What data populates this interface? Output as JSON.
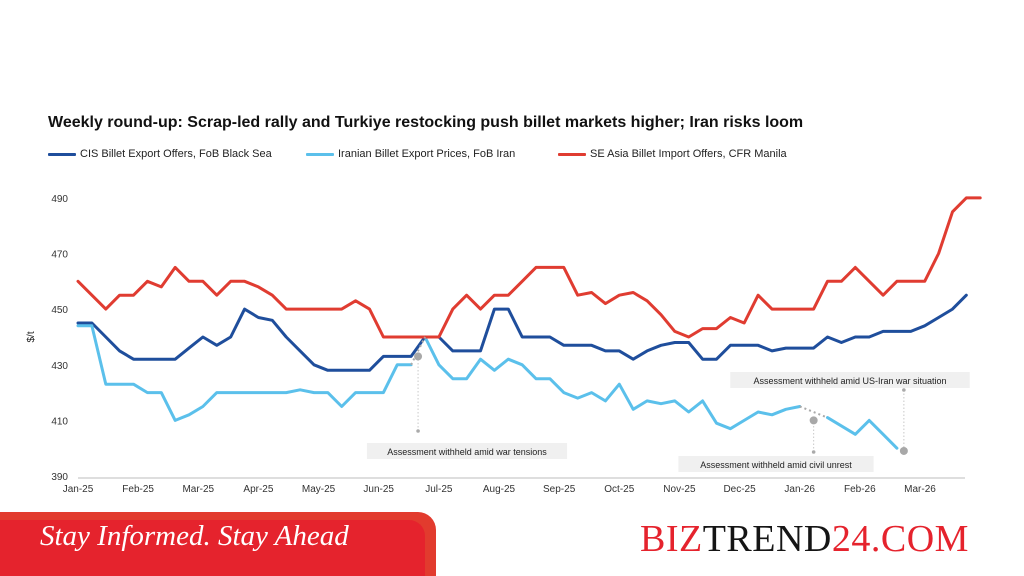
{
  "chart_data": {
    "type": "line",
    "title": "Weekly round-up: Scrap-led rally and Turkiye restocking push billet markets higher; Iran risks loom",
    "ylabel": "$/t",
    "ylim": [
      390,
      495
    ],
    "yticks": [
      390,
      410,
      430,
      450,
      470,
      490
    ],
    "xticks": [
      "Jan-25",
      "Feb-25",
      "Mar-25",
      "Apr-25",
      "May-25",
      "Jun-25",
      "Jul-25",
      "Aug-25",
      "Sep-25",
      "Oct-25",
      "Nov-25",
      "Dec-25",
      "Jan-26",
      "Feb-26",
      "Mar-26"
    ],
    "x_unit": "week index from first week of Jan-25 (month ticks every ~4.33 weeks)",
    "grid": false,
    "legend_position": "top",
    "series": [
      {
        "name": "CIS Billet Export Offers, FoB Black Sea",
        "color": "#1f4e9c",
        "points": [
          [
            0,
            445
          ],
          [
            1,
            445
          ],
          [
            2,
            440
          ],
          [
            3,
            435
          ],
          [
            4,
            432
          ],
          [
            5,
            432
          ],
          [
            6,
            432
          ],
          [
            7,
            432
          ],
          [
            8,
            436
          ],
          [
            9,
            440
          ],
          [
            10,
            437
          ],
          [
            11,
            440
          ],
          [
            12,
            450
          ],
          [
            13,
            447
          ],
          [
            14,
            446
          ],
          [
            15,
            440
          ],
          [
            16,
            435
          ],
          [
            17,
            430
          ],
          [
            18,
            428
          ],
          [
            19,
            428
          ],
          [
            20,
            428
          ],
          [
            21,
            428
          ],
          [
            22,
            433
          ],
          [
            23,
            433
          ],
          [
            24,
            433
          ],
          [
            25,
            440
          ],
          [
            26,
            440
          ],
          [
            27,
            435
          ],
          [
            28,
            435
          ],
          [
            29,
            435
          ],
          [
            30,
            450
          ],
          [
            31,
            450
          ],
          [
            32,
            440
          ],
          [
            33,
            440
          ],
          [
            34,
            440
          ],
          [
            35,
            437
          ],
          [
            36,
            437
          ],
          [
            37,
            437
          ],
          [
            38,
            435
          ],
          [
            39,
            435
          ],
          [
            40,
            432
          ],
          [
            41,
            435
          ],
          [
            42,
            437
          ],
          [
            43,
            438
          ],
          [
            44,
            438
          ],
          [
            45,
            432
          ],
          [
            46,
            432
          ],
          [
            47,
            437
          ],
          [
            48,
            437
          ],
          [
            49,
            437
          ],
          [
            50,
            435
          ],
          [
            51,
            436
          ],
          [
            52,
            436
          ],
          [
            53,
            436
          ],
          [
            54,
            440
          ],
          [
            55,
            438
          ],
          [
            56,
            440
          ],
          [
            57,
            440
          ],
          [
            58,
            442
          ],
          [
            59,
            442
          ],
          [
            60,
            442
          ],
          [
            61,
            444
          ],
          [
            62,
            447
          ],
          [
            63,
            450
          ],
          [
            64,
            455
          ]
        ]
      },
      {
        "name": "Iranian Billet Export Prices, FoB Iran",
        "color": "#5bc0eb",
        "points": [
          [
            0,
            444
          ],
          [
            1,
            444
          ],
          [
            2,
            423
          ],
          [
            3,
            423
          ],
          [
            4,
            423
          ],
          [
            5,
            420
          ],
          [
            6,
            420
          ],
          [
            7,
            410
          ],
          [
            8,
            412
          ],
          [
            9,
            415
          ],
          [
            10,
            420
          ],
          [
            11,
            420
          ],
          [
            12,
            420
          ],
          [
            13,
            420
          ],
          [
            14,
            420
          ],
          [
            15,
            420
          ],
          [
            16,
            421
          ],
          [
            17,
            420
          ],
          [
            18,
            420
          ],
          [
            19,
            415
          ],
          [
            20,
            420
          ],
          [
            21,
            420
          ],
          [
            22,
            420
          ],
          [
            23,
            430
          ],
          [
            24,
            430
          ],
          [
            null,
            null
          ],
          [
            25,
            440
          ],
          [
            26,
            430
          ],
          [
            27,
            425
          ],
          [
            28,
            425
          ],
          [
            29,
            432
          ],
          [
            30,
            428
          ],
          [
            31,
            432
          ],
          [
            32,
            430
          ],
          [
            33,
            425
          ],
          [
            34,
            425
          ],
          [
            35,
            420
          ],
          [
            36,
            418
          ],
          [
            37,
            420
          ],
          [
            38,
            417
          ],
          [
            39,
            423
          ],
          [
            40,
            414
          ],
          [
            41,
            417
          ],
          [
            42,
            416
          ],
          [
            43,
            417
          ],
          [
            44,
            413
          ],
          [
            45,
            417
          ],
          [
            46,
            409
          ],
          [
            47,
            407
          ],
          [
            48,
            410
          ],
          [
            49,
            413
          ],
          [
            50,
            412
          ],
          [
            51,
            414
          ],
          [
            52,
            415
          ],
          [
            null,
            null
          ],
          [
            54,
            411
          ],
          [
            55,
            408
          ],
          [
            56,
            405
          ],
          [
            57,
            410
          ],
          [
            58,
            405
          ],
          [
            59,
            400
          ]
        ]
      },
      {
        "name": "SE Asia Billet Import Offers, CFR Manila",
        "color": "#e03c31",
        "points": [
          [
            0,
            460
          ],
          [
            1,
            455
          ],
          [
            2,
            450
          ],
          [
            3,
            455
          ],
          [
            4,
            455
          ],
          [
            5,
            460
          ],
          [
            6,
            458
          ],
          [
            7,
            465
          ],
          [
            8,
            460
          ],
          [
            9,
            460
          ],
          [
            10,
            455
          ],
          [
            11,
            460
          ],
          [
            12,
            460
          ],
          [
            13,
            458
          ],
          [
            14,
            455
          ],
          [
            15,
            450
          ],
          [
            16,
            450
          ],
          [
            17,
            450
          ],
          [
            18,
            450
          ],
          [
            19,
            450
          ],
          [
            20,
            453
          ],
          [
            21,
            450
          ],
          [
            22,
            440
          ],
          [
            23,
            440
          ],
          [
            24,
            440
          ],
          [
            25,
            440
          ],
          [
            26,
            440
          ],
          [
            27,
            450
          ],
          [
            28,
            455
          ],
          [
            29,
            450
          ],
          [
            30,
            455
          ],
          [
            31,
            455
          ],
          [
            32,
            460
          ],
          [
            33,
            465
          ],
          [
            34,
            465
          ],
          [
            35,
            465
          ],
          [
            36,
            455
          ],
          [
            37,
            456
          ],
          [
            38,
            452
          ],
          [
            39,
            455
          ],
          [
            40,
            456
          ],
          [
            41,
            453
          ],
          [
            42,
            448
          ],
          [
            43,
            442
          ],
          [
            44,
            440
          ],
          [
            45,
            443
          ],
          [
            46,
            443
          ],
          [
            47,
            447
          ],
          [
            48,
            445
          ],
          [
            49,
            455
          ],
          [
            50,
            450
          ],
          [
            51,
            450
          ],
          [
            52,
            450
          ],
          [
            53,
            450
          ],
          [
            54,
            460
          ],
          [
            55,
            460
          ],
          [
            56,
            465
          ],
          [
            57,
            460
          ],
          [
            58,
            455
          ],
          [
            59,
            460
          ],
          [
            60,
            460
          ],
          [
            61,
            460
          ],
          [
            62,
            470
          ],
          [
            63,
            485
          ],
          [
            64,
            490
          ],
          [
            65,
            490
          ]
        ]
      }
    ],
    "annotations": [
      {
        "text": "Assessment withheld amid  war tensions",
        "x": 24.5,
        "y": 433
      },
      {
        "text": "Assessment withheld amid civil unrest",
        "x": 53,
        "y": 410
      },
      {
        "text": "Assessment withheld amid US-Iran war situation",
        "x": 59.5,
        "y": 399
      }
    ]
  },
  "banner": {
    "tagline": "Stay Informed. Stay Ahead",
    "brand_part1": "BIZ",
    "brand_part2": "TREND",
    "brand_part3": "24.COM"
  }
}
